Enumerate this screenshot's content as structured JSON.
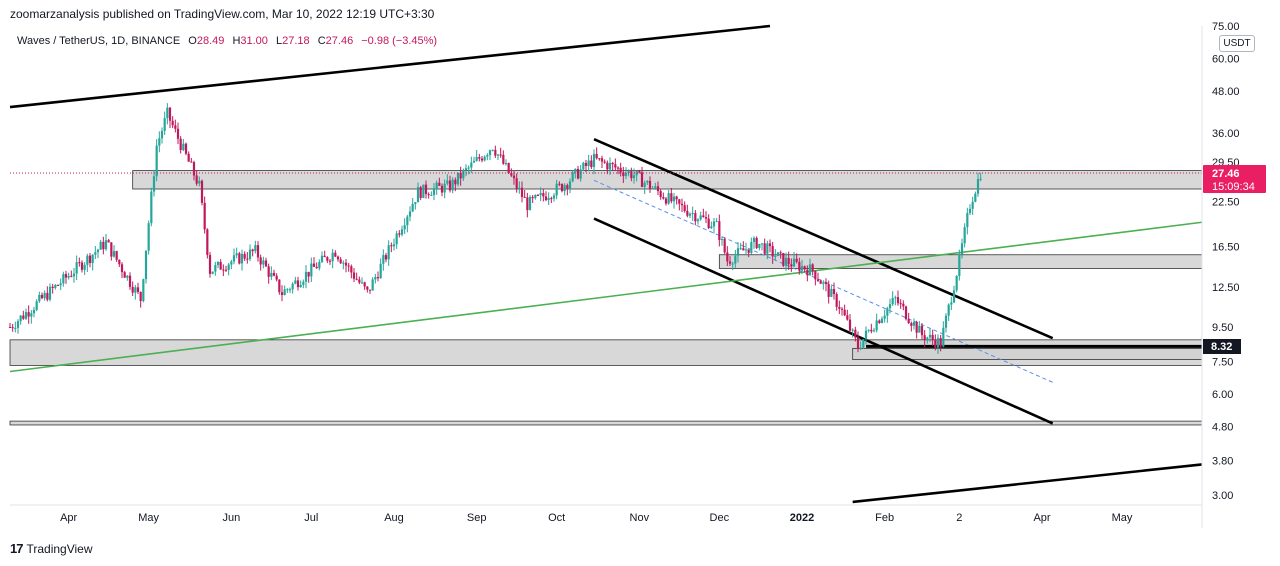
{
  "header": {
    "published": "zoomarzanalysis published on TradingView.com, Mar 10, 2022 12:19 UTC+3:30"
  },
  "legend": {
    "symbol": "Waves / TetherUS, 1D, BINANCE",
    "open_label": "O",
    "open": "28.49",
    "high_label": "H",
    "high": "31.00",
    "low_label": "L",
    "low": "27.18",
    "close_label": "C",
    "close": "27.46",
    "change": "−0.98 (−3.45%)"
  },
  "unit_badge": "USDT",
  "footer": {
    "brand": "TradingView"
  },
  "colors": {
    "up": "#26a69a",
    "down": "#c2185b",
    "trend": "#000000",
    "green_line": "#4caf50",
    "zone_fill": "#d1d1d1",
    "price_label": "#e91e63"
  },
  "chart_data": {
    "type": "candlestick",
    "scale": "log",
    "ylim": [
      2.8,
      75
    ],
    "y_ticks": [
      "75.00",
      "60.00",
      "48.00",
      "36.00",
      "29.50",
      "22.50",
      "16.50",
      "12.50",
      "9.50",
      "7.50",
      "6.00",
      "4.80",
      "3.80",
      "3.00"
    ],
    "x_labels": [
      "Apr",
      "May",
      "Jun",
      "Jul",
      "Aug",
      "Sep",
      "Oct",
      "Nov",
      "Dec",
      "2022",
      "Feb",
      "2",
      "Apr",
      "May"
    ],
    "x_range": [
      "2021-03-10",
      "2022-05-31"
    ],
    "last_price": {
      "value": "27.46",
      "countdown": "15:09:34"
    },
    "marked_level": "8.32",
    "key_points": [
      {
        "date": "2021-03-10",
        "close": 9.5
      },
      {
        "date": "2021-04-15",
        "close": 17
      },
      {
        "date": "2021-04-28",
        "close": 11.5
      },
      {
        "date": "2021-05-04",
        "close": 33
      },
      {
        "date": "2021-05-08",
        "close": 41
      },
      {
        "date": "2021-05-20",
        "close": 25
      },
      {
        "date": "2021-05-24",
        "close": 14
      },
      {
        "date": "2021-06-10",
        "close": 16
      },
      {
        "date": "2021-06-20",
        "close": 12
      },
      {
        "date": "2021-07-10",
        "close": 16
      },
      {
        "date": "2021-07-22",
        "close": 12
      },
      {
        "date": "2021-08-10",
        "close": 24
      },
      {
        "date": "2021-08-22",
        "close": 25
      },
      {
        "date": "2021-09-07",
        "close": 33
      },
      {
        "date": "2021-09-20",
        "close": 22
      },
      {
        "date": "2021-10-03",
        "close": 25
      },
      {
        "date": "2021-10-15",
        "close": 30
      },
      {
        "date": "2021-10-30",
        "close": 27
      },
      {
        "date": "2021-11-15",
        "close": 22
      },
      {
        "date": "2021-11-30",
        "close": 19
      },
      {
        "date": "2021-12-04",
        "close": 15
      },
      {
        "date": "2021-12-15",
        "close": 17
      },
      {
        "date": "2021-12-25",
        "close": 15
      },
      {
        "date": "2022-01-05",
        "close": 14
      },
      {
        "date": "2022-01-15",
        "close": 11
      },
      {
        "date": "2022-01-22",
        "close": 8.3
      },
      {
        "date": "2022-01-27",
        "close": 9.5
      },
      {
        "date": "2022-02-05",
        "close": 11.5
      },
      {
        "date": "2022-02-15",
        "close": 9.0
      },
      {
        "date": "2022-02-22",
        "close": 8.5
      },
      {
        "date": "2022-03-01",
        "close": 15
      },
      {
        "date": "2022-03-05",
        "close": 22
      },
      {
        "date": "2022-03-09",
        "close": 27.46
      }
    ],
    "zones": [
      {
        "from": "2021-04-25",
        "to": "2022-05-31",
        "low": 24.5,
        "high": 27.8
      },
      {
        "from": "2021-12-01",
        "to": "2022-05-31",
        "low": 14.2,
        "high": 15.6
      },
      {
        "from": "2021-03-10",
        "to": "2022-05-31",
        "low": 7.3,
        "high": 8.7
      },
      {
        "from": "2022-01-20",
        "to": "2022-05-31",
        "low": 7.6,
        "high": 8.2
      },
      {
        "from": "2021-03-10",
        "to": "2022-05-31",
        "low": 4.85,
        "high": 4.98
      }
    ],
    "trendlines": [
      {
        "color": "black",
        "from": [
          "2021-03-10",
          43
        ],
        "to": [
          "2021-12-20",
          75
        ]
      },
      {
        "color": "black",
        "from": [
          "2021-10-15",
          34.5
        ],
        "to": [
          "2022-04-05",
          8.8
        ]
      },
      {
        "color": "black",
        "from": [
          "2021-10-15",
          20
        ],
        "to": [
          "2022-04-05",
          4.9
        ]
      },
      {
        "color": "black",
        "from": [
          "2022-01-20",
          2.86
        ],
        "to": [
          "2022-05-31",
          3.7
        ]
      },
      {
        "color": "green",
        "from": [
          "2021-03-10",
          7.0
        ],
        "to": [
          "2022-05-31",
          19.5
        ]
      },
      {
        "color": "blue-dashed",
        "from": [
          "2021-10-15",
          26
        ],
        "to": [
          "2022-04-05",
          6.5
        ]
      },
      {
        "color": "black-thick",
        "from": [
          "2022-01-25",
          8.32
        ],
        "to": [
          "2022-05-31",
          8.32
        ]
      }
    ]
  }
}
